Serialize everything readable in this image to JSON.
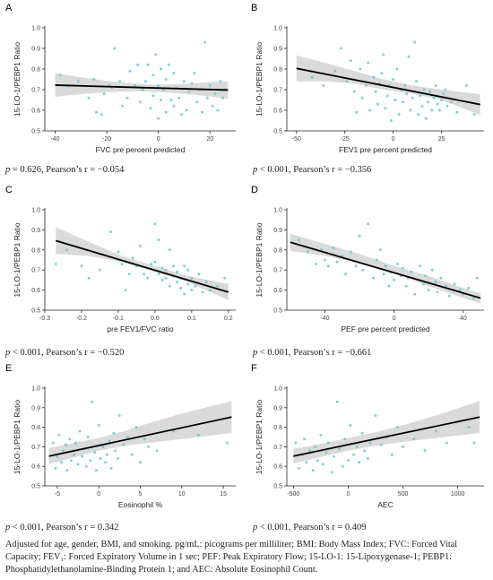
{
  "chart_data": [
    {
      "panel": "A",
      "type": "scatter",
      "ylabel": "15-LO-1/PEBP1 Ratio",
      "xlabel": "FVC pre percent predicted",
      "xlim": [
        -44,
        30
      ],
      "ylim": [
        0.5,
        1.0
      ],
      "xticks": [
        -40,
        -20,
        0,
        20
      ],
      "xtick_labels": [
        "-40",
        "-20",
        "0",
        "20"
      ],
      "yticks": [
        0.5,
        0.6,
        0.7,
        0.8,
        0.9,
        1.0
      ],
      "ytick_labels": [
        "0.5",
        "0.6",
        "0.7",
        "0.8",
        "0.9",
        "1.0"
      ],
      "fit": {
        "x": [
          -40,
          27
        ],
        "y": [
          0.722,
          0.698
        ]
      },
      "band": {
        "x": [
          -40,
          -30,
          -20,
          -10,
          0,
          10,
          20,
          27
        ],
        "lower": [
          0.665,
          0.678,
          0.688,
          0.692,
          0.688,
          0.68,
          0.667,
          0.656
        ],
        "upper": [
          0.779,
          0.76,
          0.742,
          0.73,
          0.724,
          0.728,
          0.737,
          0.74
        ]
      },
      "points": {
        "x": [
          -38,
          -35,
          -31,
          -27,
          -25,
          -24,
          -22,
          -21,
          -19,
          -18,
          -17,
          -15,
          -14,
          -12,
          -11,
          -9,
          -8,
          -7,
          -6,
          -5,
          -4,
          -3,
          -2,
          -2,
          -1,
          0,
          0,
          1,
          1,
          2,
          3,
          3,
          4,
          5,
          6,
          6,
          7,
          8,
          9,
          10,
          11,
          12,
          13,
          14,
          15,
          16,
          17,
          18,
          19,
          20,
          21,
          22,
          23,
          24,
          25,
          26
        ],
        "y": [
          0.77,
          0.72,
          0.74,
          0.66,
          0.75,
          0.59,
          0.58,
          0.68,
          0.72,
          0.71,
          0.9,
          0.74,
          0.62,
          0.66,
          0.79,
          0.72,
          0.82,
          0.64,
          0.7,
          0.74,
          0.82,
          0.61,
          0.67,
          0.77,
          0.87,
          0.56,
          0.72,
          0.65,
          0.8,
          0.7,
          0.59,
          0.75,
          0.82,
          0.65,
          0.62,
          0.78,
          0.71,
          0.66,
          0.58,
          0.74,
          0.6,
          0.69,
          0.73,
          0.78,
          0.64,
          0.7,
          0.59,
          0.93,
          0.66,
          0.72,
          0.62,
          0.68,
          0.6,
          0.74,
          0.66,
          0.7
        ]
      },
      "stat": "p = 0.626, Pearson’s r = −0.054"
    },
    {
      "panel": "B",
      "type": "scatter",
      "ylabel": "15-LO-1/PEBP1 Ratio",
      "xlabel": "FEV1 pre percent predicted",
      "xlim": [
        -55,
        47
      ],
      "ylim": [
        0.5,
        1.0
      ],
      "xticks": [
        -50,
        -25,
        0,
        25
      ],
      "xtick_labels": [
        "-50",
        "-25",
        "0",
        "25"
      ],
      "yticks": [
        0.5,
        0.6,
        0.7,
        0.8,
        0.9,
        1.0
      ],
      "ytick_labels": [
        "0.5",
        "0.6",
        "0.7",
        "0.8",
        "0.9",
        "1.0"
      ],
      "fit": {
        "x": [
          -50,
          45
        ],
        "y": [
          0.803,
          0.628
        ]
      },
      "band": {
        "x": [
          -50,
          -35,
          -20,
          -5,
          10,
          25,
          45
        ],
        "lower": [
          0.74,
          0.74,
          0.73,
          0.7,
          0.68,
          0.65,
          0.578
        ],
        "upper": [
          0.866,
          0.83,
          0.79,
          0.75,
          0.72,
          0.7,
          0.678
        ]
      },
      "points": {
        "x": [
          -42,
          -36,
          -30,
          -27,
          -24,
          -22,
          -20,
          -19,
          -17,
          -16,
          -14,
          -13,
          -12,
          -10,
          -9,
          -8,
          -7,
          -6,
          -5,
          -4,
          -3,
          -2,
          -1,
          0,
          1,
          2,
          3,
          4,
          5,
          6,
          7,
          8,
          9,
          10,
          11,
          12,
          13,
          14,
          15,
          16,
          17,
          18,
          19,
          20,
          21,
          22,
          23,
          24,
          25,
          26,
          27,
          28,
          30,
          33,
          38,
          42
        ],
        "y": [
          0.76,
          0.72,
          0.79,
          0.9,
          0.74,
          0.84,
          0.69,
          0.59,
          0.8,
          0.66,
          0.72,
          0.83,
          0.6,
          0.76,
          0.69,
          0.63,
          0.73,
          0.78,
          0.87,
          0.61,
          0.67,
          0.72,
          0.55,
          0.75,
          0.65,
          0.8,
          0.58,
          0.7,
          0.64,
          0.72,
          0.68,
          0.86,
          0.6,
          0.66,
          0.93,
          0.74,
          0.58,
          0.67,
          0.62,
          0.7,
          0.56,
          0.64,
          0.69,
          0.6,
          0.66,
          0.72,
          0.63,
          0.6,
          0.65,
          0.68,
          0.7,
          0.62,
          0.64,
          0.59,
          0.72,
          0.58
        ]
      },
      "stat": "p < 0.001, Pearson’s r = −0.356"
    },
    {
      "panel": "C",
      "type": "scatter",
      "ylabel": "15-LO-1/PEBP1 Ratio",
      "xlabel": "pre FEV1/FVC ratio",
      "xlim": [
        -0.3,
        0.22
      ],
      "ylim": [
        0.5,
        1.0
      ],
      "xticks": [
        -0.3,
        -0.2,
        -0.1,
        0.0,
        0.1,
        0.2
      ],
      "xtick_labels": [
        "-0.3",
        "-0.2",
        "-0.1",
        "0.0",
        "0.1",
        "0.2"
      ],
      "yticks": [
        0.5,
        0.6,
        0.7,
        0.8,
        0.9,
        1.0
      ],
      "ytick_labels": [
        "0.5",
        "0.6",
        "0.7",
        "0.8",
        "0.9",
        "1.0"
      ],
      "fit": {
        "x": [
          -0.27,
          0.2
        ],
        "y": [
          0.846,
          0.59
        ]
      },
      "band": {
        "x": [
          -0.27,
          -0.18,
          -0.09,
          0.0,
          0.09,
          0.2
        ],
        "lower": [
          0.78,
          0.77,
          0.74,
          0.69,
          0.64,
          0.55
        ],
        "upper": [
          0.912,
          0.84,
          0.77,
          0.72,
          0.67,
          0.63
        ]
      },
      "points": {
        "x": [
          -0.27,
          -0.24,
          -0.2,
          -0.18,
          -0.15,
          -0.12,
          -0.1,
          -0.09,
          -0.08,
          -0.07,
          -0.06,
          -0.05,
          -0.04,
          -0.03,
          -0.02,
          -0.01,
          0.0,
          0.0,
          0.01,
          0.01,
          0.02,
          0.02,
          0.03,
          0.03,
          0.04,
          0.04,
          0.05,
          0.05,
          0.06,
          0.06,
          0.07,
          0.07,
          0.08,
          0.08,
          0.09,
          0.09,
          0.1,
          0.1,
          0.11,
          0.12,
          0.13,
          0.14,
          0.15,
          0.17,
          0.19
        ],
        "y": [
          0.73,
          0.8,
          0.72,
          0.66,
          0.7,
          0.89,
          0.79,
          0.73,
          0.6,
          0.68,
          0.76,
          0.72,
          0.82,
          0.68,
          0.66,
          0.73,
          0.93,
          0.74,
          0.68,
          0.85,
          0.71,
          0.65,
          0.7,
          0.66,
          0.8,
          0.62,
          0.72,
          0.67,
          0.64,
          0.69,
          0.61,
          0.66,
          0.72,
          0.58,
          0.63,
          0.7,
          0.6,
          0.66,
          0.62,
          0.68,
          0.59,
          0.64,
          0.6,
          0.62,
          0.66
        ]
      },
      "stat": "p < 0.001, Pearson’s r = −0.520"
    },
    {
      "panel": "D",
      "type": "scatter",
      "ylabel": "15-LO-1/PEBP1 Ratio",
      "xlabel": "PEF pre percent predicted",
      "xlim": [
        -62,
        52
      ],
      "ylim": [
        0.5,
        1.0
      ],
      "xticks": [
        -40,
        0,
        40
      ],
      "xtick_labels": [
        "-40",
        "0",
        "40"
      ],
      "yticks": [
        0.5,
        0.6,
        0.7,
        0.8,
        0.9,
        1.0
      ],
      "ytick_labels": [
        "0.5",
        "0.6",
        "0.7",
        "0.8",
        "0.9",
        "1.0"
      ],
      "fit": {
        "x": [
          -60,
          50
        ],
        "y": [
          0.838,
          0.56
        ]
      },
      "band": {
        "x": [
          -60,
          -40,
          -20,
          0,
          20,
          40,
          50
        ],
        "lower": [
          0.795,
          0.77,
          0.735,
          0.685,
          0.62,
          0.56,
          0.535
        ],
        "upper": [
          0.881,
          0.83,
          0.78,
          0.72,
          0.67,
          0.61,
          0.585
        ]
      },
      "points": {
        "x": [
          -55,
          -50,
          -45,
          -42,
          -40,
          -38,
          -35,
          -33,
          -30,
          -28,
          -25,
          -22,
          -20,
          -18,
          -15,
          -12,
          -10,
          -8,
          -6,
          -5,
          -3,
          -2,
          0,
          2,
          4,
          5,
          7,
          8,
          10,
          12,
          14,
          15,
          17,
          18,
          20,
          22,
          24,
          25,
          27,
          30,
          32,
          35,
          38,
          40,
          43,
          46,
          48
        ],
        "y": [
          0.85,
          0.79,
          0.73,
          0.8,
          0.75,
          0.72,
          0.81,
          0.74,
          0.77,
          0.68,
          0.79,
          0.72,
          0.87,
          0.7,
          0.93,
          0.66,
          0.75,
          0.8,
          0.68,
          0.72,
          0.62,
          0.69,
          0.65,
          0.73,
          0.67,
          0.71,
          0.62,
          0.66,
          0.69,
          0.58,
          0.65,
          0.72,
          0.63,
          0.67,
          0.6,
          0.7,
          0.64,
          0.59,
          0.66,
          0.62,
          0.57,
          0.63,
          0.6,
          0.58,
          0.61,
          0.56,
          0.66
        ]
      },
      "stat": "p < 0.001, Pearson’s r = −0.661"
    },
    {
      "panel": "E",
      "type": "scatter",
      "ylabel": "15-LO-1/PEBP1 Ratio",
      "xlabel": "Eosinophil %",
      "xlim": [
        -6.5,
        16.5
      ],
      "ylim": [
        0.5,
        1.0
      ],
      "xticks": [
        -5,
        0,
        5,
        10,
        15
      ],
      "xtick_labels": [
        "-5",
        "0",
        "5",
        "10",
        "15"
      ],
      "yticks": [
        0.5,
        0.6,
        0.7,
        0.8,
        0.9,
        1.0
      ],
      "ytick_labels": [
        "0.5",
        "0.6",
        "0.7",
        "0.8",
        "0.9",
        "1.0"
      ],
      "fit": {
        "x": [
          -6,
          16
        ],
        "y": [
          0.652,
          0.852
        ]
      },
      "band": {
        "x": [
          -6,
          -3,
          0,
          3,
          6,
          10,
          16
        ],
        "lower": [
          0.61,
          0.645,
          0.68,
          0.705,
          0.72,
          0.74,
          0.77
        ],
        "upper": [
          0.694,
          0.72,
          0.745,
          0.78,
          0.82,
          0.87,
          0.934
        ]
      },
      "points": {
        "x": [
          -5.5,
          -5.2,
          -5.0,
          -4.8,
          -4.5,
          -4.3,
          -4.0,
          -3.8,
          -3.5,
          -3.3,
          -3.0,
          -2.8,
          -2.5,
          -2.3,
          -2.0,
          -1.8,
          -1.5,
          -1.3,
          -1.0,
          -0.8,
          -0.5,
          -0.3,
          0.0,
          0.2,
          0.5,
          0.8,
          1.0,
          1.3,
          1.5,
          1.8,
          2.0,
          2.3,
          2.5,
          3.0,
          3.5,
          4.0,
          4.5,
          5.0,
          5.5,
          6.0,
          7.0,
          9.0,
          12.0,
          15.5
        ],
        "y": [
          0.72,
          0.59,
          0.65,
          0.76,
          0.62,
          0.68,
          0.71,
          0.58,
          0.74,
          0.63,
          0.66,
          0.72,
          0.61,
          0.78,
          0.65,
          0.69,
          0.6,
          0.75,
          0.63,
          0.93,
          0.67,
          0.58,
          0.81,
          0.64,
          0.7,
          0.62,
          0.66,
          0.73,
          0.59,
          0.77,
          0.68,
          0.64,
          0.86,
          0.71,
          0.75,
          0.66,
          0.8,
          0.62,
          0.74,
          0.7,
          0.68,
          0.78,
          0.76,
          0.72
        ]
      },
      "stat": "p < 0.001, Pearson’s r = 0.342"
    },
    {
      "panel": "F",
      "type": "scatter",
      "ylabel": "15-LO-1/PEBP1 Ratio",
      "xlabel": "AEC",
      "xlim": [
        -560,
        1240
      ],
      "ylim": [
        0.5,
        1.0
      ],
      "xticks": [
        -500,
        0,
        500,
        1000
      ],
      "xtick_labels": [
        "-500",
        "0",
        "500",
        "1000"
      ],
      "yticks": [
        0.5,
        0.6,
        0.7,
        0.8,
        0.9,
        1.0
      ],
      "ytick_labels": [
        "0.5",
        "0.6",
        "0.7",
        "0.8",
        "0.9",
        "1.0"
      ],
      "fit": {
        "x": [
          -500,
          1200
        ],
        "y": [
          0.652,
          0.852
        ]
      },
      "band": {
        "x": [
          -500,
          -250,
          0,
          250,
          500,
          800,
          1200
        ],
        "lower": [
          0.615,
          0.648,
          0.68,
          0.705,
          0.725,
          0.745,
          0.77
        ],
        "upper": [
          0.689,
          0.715,
          0.745,
          0.775,
          0.81,
          0.86,
          0.934
        ]
      },
      "points": {
        "x": [
          -480,
          -450,
          -420,
          -400,
          -380,
          -350,
          -320,
          -300,
          -280,
          -250,
          -230,
          -200,
          -180,
          -150,
          -130,
          -100,
          -80,
          -50,
          -30,
          0,
          20,
          50,
          80,
          100,
          130,
          150,
          180,
          200,
          250,
          300,
          350,
          400,
          450,
          500,
          600,
          700,
          800,
          900,
          1100,
          1150
        ],
        "y": [
          0.72,
          0.59,
          0.66,
          0.74,
          0.62,
          0.68,
          0.58,
          0.7,
          0.63,
          0.76,
          0.61,
          0.67,
          0.72,
          0.57,
          0.65,
          0.93,
          0.69,
          0.6,
          0.74,
          0.63,
          0.81,
          0.66,
          0.7,
          0.62,
          0.77,
          0.68,
          0.64,
          0.72,
          0.86,
          0.71,
          0.75,
          0.66,
          0.8,
          0.7,
          0.74,
          0.68,
          0.78,
          0.72,
          0.8,
          0.72
        ]
      },
      "stat": "p < 0.001, Pearson’s r = 0.409"
    }
  ],
  "style": {
    "point_color": "#5fc7c9",
    "band_color": "#d3d3d3",
    "line_color": "#000000",
    "axis_color": "#222222"
  },
  "footnote": "Adjusted for age, gender, BMI, and smoking. pg/mL: picograms per milliliter; BMI: Body Mass Index; FVC: Forced Vital Capacity; FEV₁: Forced Expiratory Volume in 1 sec; PEF: Peak Expiratory Flow; 15-LO-1: 15-Lipoxygenase-1; PEBP1: Phosphatidylethanolamine-Binding Protein 1; and AEC: Absolute Eosinophil Count."
}
